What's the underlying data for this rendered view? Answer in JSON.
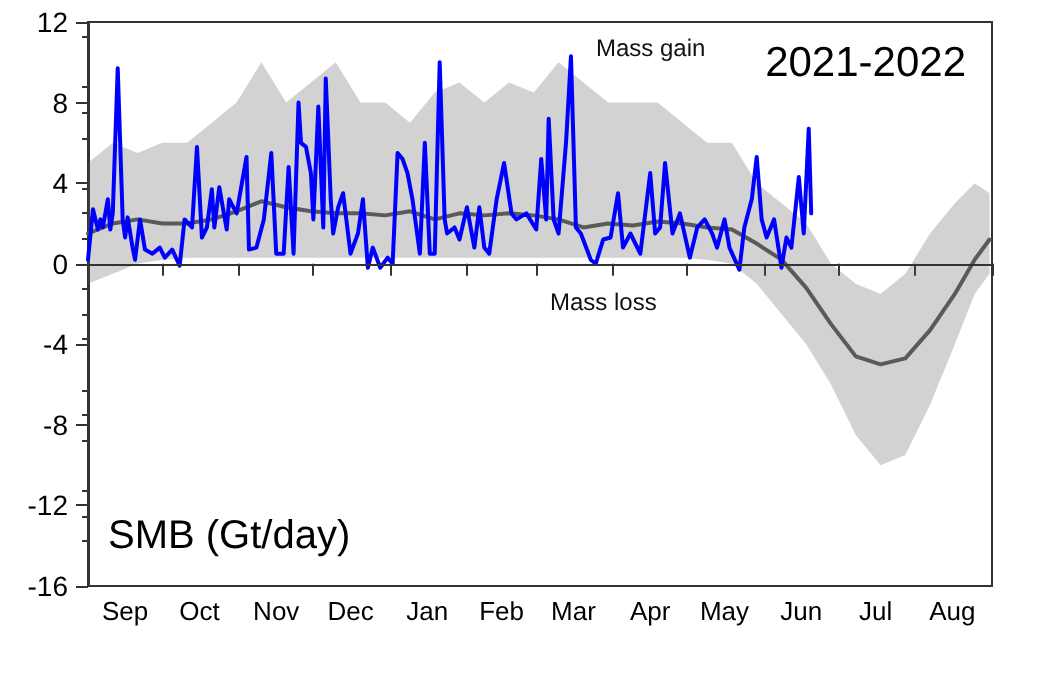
{
  "chart_data": {
    "type": "line",
    "title": "2021-2022",
    "ylabel": "SMB (Gt/day)",
    "annotations": [
      "Mass gain",
      "Mass loss"
    ],
    "xlim": [
      "2021-09-01",
      "2022-09-01"
    ],
    "xticks": [
      {
        "value": "2021-09-01",
        "label": null
      },
      {
        "value": "2021-10-01",
        "label": null
      },
      {
        "value": "2021-11-01",
        "label": null
      },
      {
        "value": "2021-12-01",
        "label": null
      },
      {
        "value": "2022-01-01",
        "label": null
      },
      {
        "value": "2022-02-01",
        "label": null
      },
      {
        "value": "2022-03-01",
        "label": null
      },
      {
        "value": "2022-04-01",
        "label": null
      },
      {
        "value": "2022-05-01",
        "label": null
      },
      {
        "value": "2022-06-01",
        "label": null
      },
      {
        "value": "2022-07-01",
        "label": null
      },
      {
        "value": "2022-08-01",
        "label": null
      },
      {
        "value": "2022-09-01",
        "label": null
      },
      {
        "value": "2021-09-16",
        "label": "Sep"
      },
      {
        "value": "2021-10-16",
        "label": "Oct"
      },
      {
        "value": "2021-11-16",
        "label": "Nov"
      },
      {
        "value": "2021-12-16",
        "label": "Dec"
      },
      {
        "value": "2022-01-16",
        "label": "Jan"
      },
      {
        "value": "2022-02-15",
        "label": "Feb"
      },
      {
        "value": "2022-03-16",
        "label": "Mar"
      },
      {
        "value": "2022-04-16",
        "label": "Apr"
      },
      {
        "value": "2022-05-16",
        "label": "May"
      },
      {
        "value": "2022-06-16",
        "label": "Jun"
      },
      {
        "value": "2022-07-16",
        "label": "Jul"
      },
      {
        "value": "2022-08-16",
        "label": "Aug"
      }
    ],
    "ylim": [
      -16,
      12
    ],
    "yticks": [
      -16,
      -12,
      -8,
      -4,
      0,
      4,
      8,
      12
    ],
    "grid": false,
    "marker": "none",
    "line_style": "solid",
    "ref_lines": [
      {
        "axis": "y",
        "value": 0,
        "label": null,
        "color": "#333333"
      }
    ],
    "series": [
      {
        "color": "#5a5a5a",
        "x": [
          "2021-09-01",
          "2021-09-11",
          "2021-09-21",
          "2021-10-01",
          "2021-10-11",
          "2021-10-21",
          "2021-10-31",
          "2021-11-10",
          "2021-11-20",
          "2021-11-30",
          "2021-12-10",
          "2021-12-20",
          "2021-12-30",
          "2022-01-09",
          "2022-01-19",
          "2022-01-29",
          "2022-02-08",
          "2022-02-18",
          "2022-02-28",
          "2022-03-10",
          "2022-03-20",
          "2022-03-30",
          "2022-04-09",
          "2022-04-19",
          "2022-04-29",
          "2022-05-09",
          "2022-05-19",
          "2022-05-29",
          "2022-06-08",
          "2022-06-18",
          "2022-06-28",
          "2022-07-08",
          "2022-07-18",
          "2022-07-28",
          "2022-08-07",
          "2022-08-17",
          "2022-08-25",
          "2022-08-31"
        ],
        "values": [
          1.5,
          2,
          2.2,
          2,
          2,
          2.2,
          2.6,
          3.1,
          2.8,
          2.6,
          2.5,
          2.5,
          2.4,
          2.6,
          2.2,
          2.5,
          2.4,
          2.5,
          2.4,
          2.2,
          1.8,
          2,
          1.9,
          2.1,
          2,
          1.8,
          1.7,
          1,
          0.2,
          -1.2,
          -3,
          -4.6,
          -5,
          -4.7,
          -3.3,
          -1.5,
          0.2,
          1.2
        ],
        "lower": [
          -1,
          -0.5,
          0,
          0.2,
          0.3,
          0.3,
          0.3,
          0.3,
          0.3,
          0.3,
          0.3,
          0.3,
          0.3,
          0.3,
          0.3,
          0.3,
          0.3,
          0.3,
          0.3,
          0.3,
          0.3,
          0.3,
          0.3,
          0.3,
          0.3,
          0.2,
          0,
          -1,
          -2.5,
          -4,
          -6,
          -8.5,
          -10,
          -9.5,
          -7,
          -4,
          -1.5,
          -0.5
        ],
        "upper": [
          5,
          6,
          5.5,
          6,
          6,
          7,
          8,
          10,
          8,
          9,
          10,
          8,
          8,
          7,
          8.5,
          9,
          8,
          9,
          8.5,
          10,
          9,
          8,
          8,
          8,
          7,
          6,
          6,
          4,
          3,
          2,
          0,
          -1,
          -1.5,
          -0.5,
          1.5,
          3,
          4,
          3.5
        ]
      },
      {
        "color": "#0000ff",
        "x": [
          "2021-09-01",
          "2021-09-03",
          "2021-09-05",
          "2021-09-06",
          "2021-09-07",
          "2021-09-09",
          "2021-09-10",
          "2021-09-11",
          "2021-09-13",
          "2021-09-15",
          "2021-09-16",
          "2021-09-17",
          "2021-09-19",
          "2021-09-20",
          "2021-09-22",
          "2021-09-24",
          "2021-09-27",
          "2021-09-30",
          "2021-10-02",
          "2021-10-05",
          "2021-10-08",
          "2021-10-10",
          "2021-10-13",
          "2021-10-15",
          "2021-10-17",
          "2021-10-19",
          "2021-10-21",
          "2021-10-22",
          "2021-10-24",
          "2021-10-27",
          "2021-10-28",
          "2021-10-31",
          "2021-11-04",
          "2021-11-05",
          "2021-11-08",
          "2021-11-11",
          "2021-11-14",
          "2021-11-16",
          "2021-11-19",
          "2021-11-21",
          "2021-11-23",
          "2021-11-25",
          "2021-11-26",
          "2021-11-28",
          "2021-11-30",
          "2021-12-01",
          "2021-12-03",
          "2021-12-05",
          "2021-12-06",
          "2021-12-08",
          "2021-12-09",
          "2021-12-11",
          "2021-12-13",
          "2021-12-16",
          "2021-12-19",
          "2021-12-21",
          "2021-12-23",
          "2021-12-25",
          "2021-12-28",
          "2021-12-31",
          "2022-01-02",
          "2022-01-04",
          "2022-01-06",
          "2022-01-08",
          "2022-01-10",
          "2022-01-13",
          "2022-01-15",
          "2022-01-17",
          "2022-01-19",
          "2022-01-21",
          "2022-01-23",
          "2022-01-24",
          "2022-01-27",
          "2022-01-29",
          "2022-02-01",
          "2022-02-04",
          "2022-02-06",
          "2022-02-08",
          "2022-02-10",
          "2022-02-13",
          "2022-02-16",
          "2022-02-19",
          "2022-02-21",
          "2022-02-25",
          "2022-03-01",
          "2022-03-03",
          "2022-03-05",
          "2022-03-06",
          "2022-03-08",
          "2022-03-10",
          "2022-03-13",
          "2022-03-15",
          "2022-03-17",
          "2022-03-19",
          "2022-03-23",
          "2022-03-25",
          "2022-03-28",
          "2022-03-31",
          "2022-04-03",
          "2022-04-05",
          "2022-04-08",
          "2022-04-12",
          "2022-04-16",
          "2022-04-18",
          "2022-04-20",
          "2022-04-22",
          "2022-04-25",
          "2022-04-28",
          "2022-05-02",
          "2022-05-05",
          "2022-05-08",
          "2022-05-11",
          "2022-05-13",
          "2022-05-16",
          "2022-05-18",
          "2022-05-22",
          "2022-05-24",
          "2022-05-27",
          "2022-05-29",
          "2022-05-31",
          "2022-06-02",
          "2022-06-05",
          "2022-06-08",
          "2022-06-10",
          "2022-06-12",
          "2022-06-15",
          "2022-06-17",
          "2022-06-19",
          "2022-06-20"
        ],
        "values": [
          0.2,
          2.7,
          1.7,
          2.2,
          1.8,
          3.2,
          1.7,
          2.5,
          9.7,
          2.2,
          1.3,
          2.3,
          0.8,
          0.2,
          2.2,
          0.7,
          0.5,
          0.8,
          0.3,
          0.7,
          -0.1,
          2.2,
          1.8,
          5.8,
          1.3,
          1.8,
          3.7,
          1.8,
          3.8,
          1.7,
          3.2,
          2.5,
          5.3,
          0.7,
          0.8,
          2.2,
          5.5,
          0.5,
          0.5,
          4.8,
          0.5,
          8,
          6,
          5.8,
          4.5,
          2.2,
          7.8,
          1.8,
          9.2,
          3.2,
          1.5,
          2.8,
          3.5,
          0.5,
          1.5,
          3.2,
          -0.2,
          0.8,
          -0.2,
          0.3,
          0,
          5.5,
          5.2,
          4.5,
          3.2,
          0.5,
          6,
          0.5,
          0.5,
          10,
          2.2,
          1.5,
          1.8,
          1.2,
          2.8,
          0.8,
          2.8,
          0.8,
          0.5,
          3.2,
          5,
          2.5,
          2.2,
          2.5,
          1.7,
          5.2,
          2.2,
          7.2,
          2.2,
          1.5,
          6,
          10.3,
          1.8,
          1.5,
          0.2,
          0,
          1.2,
          1.3,
          3.5,
          0.8,
          1.5,
          0.5,
          4.5,
          1.5,
          1.8,
          5,
          1.5,
          2.5,
          0.3,
          1.8,
          2.2,
          1.5,
          0.8,
          2.2,
          0.8,
          -0.3,
          1.8,
          3.2,
          5.3,
          2.2,
          1.3,
          2.2,
          -0.2,
          1.3,
          0.8,
          4.3,
          1.5,
          6.7,
          2.5
        ]
      }
    ]
  }
}
